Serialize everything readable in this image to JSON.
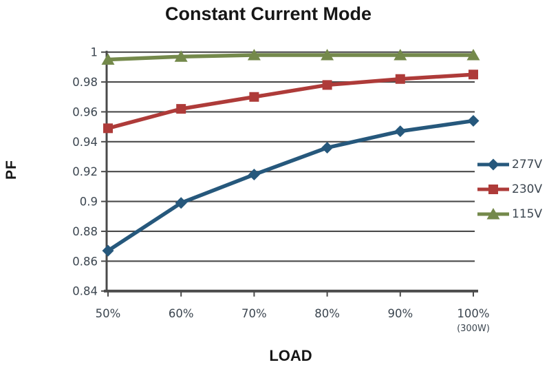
{
  "chart_data": {
    "type": "line",
    "title": "Constant Current Mode",
    "xlabel": "LOAD",
    "ylabel": "PF",
    "categories": [
      "50%",
      "60%",
      "70%",
      "80%",
      "90%",
      "100%"
    ],
    "last_category_note": "(300W)",
    "series": [
      {
        "name": "277V",
        "color": "#26587C",
        "marker": "diamond",
        "values": [
          0.867,
          0.899,
          0.918,
          0.936,
          0.947,
          0.954
        ]
      },
      {
        "name": "230V",
        "color": "#AE3B39",
        "marker": "square",
        "values": [
          0.949,
          0.962,
          0.97,
          0.978,
          0.982,
          0.985
        ]
      },
      {
        "name": "115V",
        "color": "#74894B",
        "marker": "triangle",
        "values": [
          0.995,
          0.997,
          0.998,
          0.998,
          0.998,
          0.998
        ]
      }
    ],
    "ylim": [
      0.84,
      1.0
    ],
    "ytick_step": 0.02,
    "ytick_labels": [
      "1",
      "0.98",
      "0.96",
      "0.94",
      "0.92",
      "0.9",
      "0.88",
      "0.86",
      "0.84"
    ],
    "grid": true,
    "legend_position": "right",
    "axis_color": "#4a4a4a",
    "tick_text_color": "#3c4650"
  }
}
